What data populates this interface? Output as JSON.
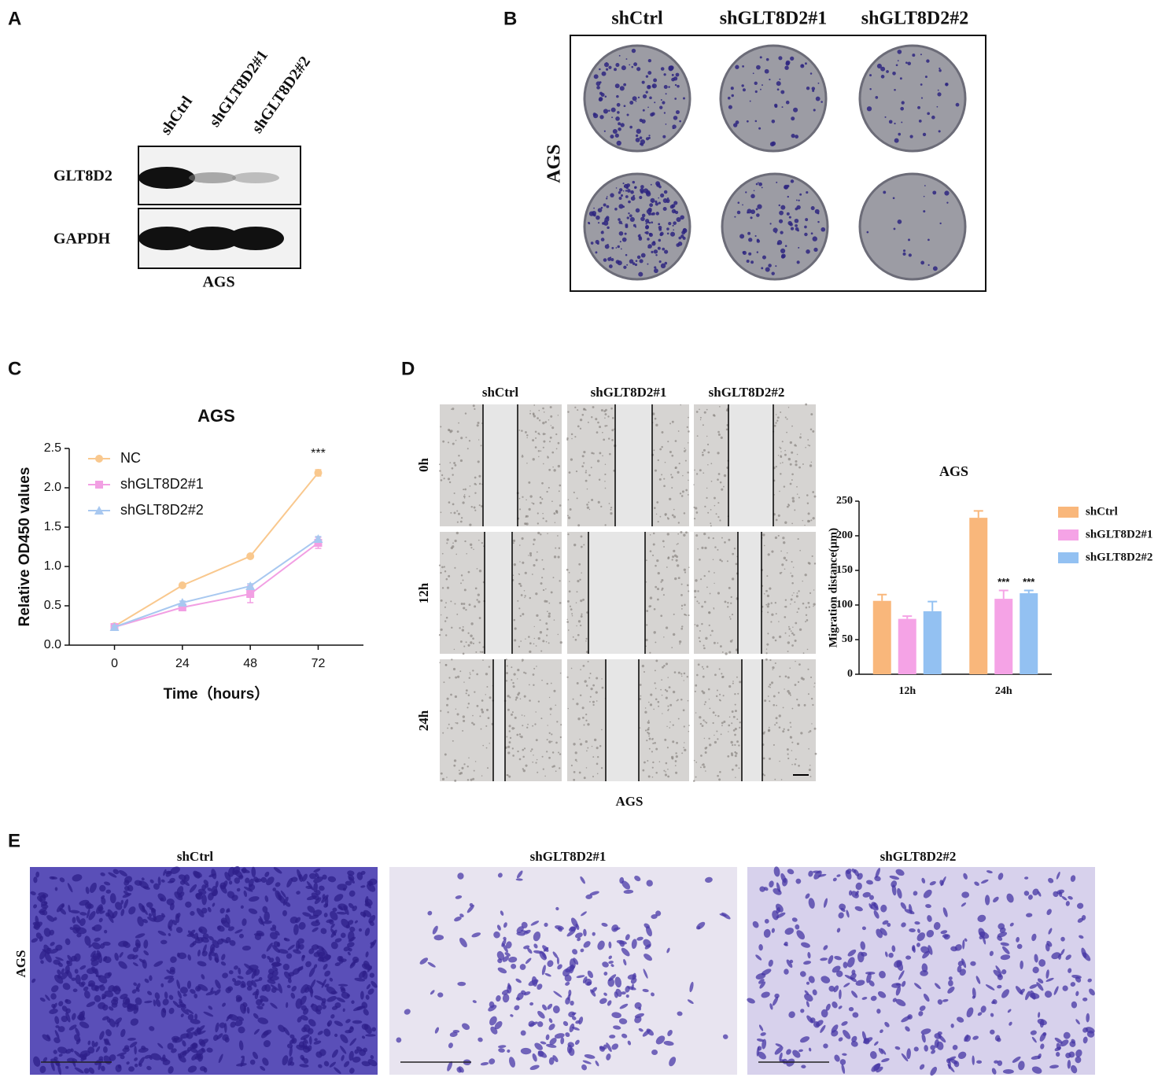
{
  "panel_labels": [
    "A",
    "B",
    "C",
    "D",
    "E"
  ],
  "western_blot": {
    "lanes": [
      "shCtrl",
      "shGLT8D2#1",
      "shGLT8D2#2"
    ],
    "proteins": [
      "GLT8D2",
      "GAPDH"
    ],
    "cell_line": "AGS"
  },
  "colony_formation": {
    "groups": [
      "shCtrl",
      "shGLT8D2#1",
      "shGLT8D2#2"
    ],
    "cell_line": "AGS"
  },
  "wound_healing": {
    "groups": [
      "shCtrl",
      "shGLT8D2#1",
      "shGLT8D2#2"
    ],
    "times": [
      "0h",
      "12h",
      "24h"
    ],
    "cell_line": "AGS"
  },
  "transwell": {
    "groups": [
      "shCtrl",
      "shGLT8D2#1",
      "shGLT8D2#2"
    ],
    "cell_line": "AGS"
  },
  "chart_data": [
    {
      "type": "line",
      "title": "AGS",
      "x_label": "Time（hours）",
      "y_label": "Relative OD450 values",
      "x": [
        0,
        24,
        48,
        72
      ],
      "xlim": [
        -16,
        88
      ],
      "xticks": [
        0,
        24,
        48,
        72
      ],
      "ylim": [
        0,
        2.5
      ],
      "yticks": [
        {
          "value": 0,
          "label": "0.0"
        },
        0.5,
        {
          "value": 1,
          "label": "1.0"
        },
        1.5,
        {
          "value": 2,
          "label": "2.0"
        },
        2.5
      ],
      "legend": "upper left",
      "series": [
        {
          "name": "NC",
          "color": "#f9c88e",
          "marker": "circle",
          "values": [
            0.24,
            0.76,
            1.13,
            2.19
          ],
          "errors": [
            0.02,
            0.02,
            0.02,
            0.04
          ],
          "significance": [
            null,
            null,
            null,
            "***"
          ]
        },
        {
          "name": "shGLT8D2#1",
          "color": "#f29fe3",
          "marker": "square",
          "values": [
            0.23,
            0.48,
            0.65,
            1.3
          ],
          "errors": [
            0.02,
            0.03,
            0.11,
            0.07
          ],
          "significance": [
            null,
            null,
            null,
            null
          ]
        },
        {
          "name": "shGLT8D2#2",
          "color": "#a8c8f0",
          "marker": "triangle",
          "values": [
            0.23,
            0.54,
            0.75,
            1.35
          ],
          "errors": [
            0.02,
            0.02,
            0.03,
            0.03
          ],
          "significance": [
            null,
            null,
            null,
            null
          ]
        }
      ]
    },
    {
      "type": "bar",
      "title": "AGS",
      "y_label": "Migration distance(μm)",
      "categories": [
        "12h",
        "24h"
      ],
      "ylim": [
        0,
        250
      ],
      "yticks": [
        0,
        50,
        100,
        150,
        200,
        250
      ],
      "legend": "right",
      "series": [
        {
          "name": "shCtrl",
          "color": "#f9b77b",
          "values": [
            106,
            226
          ],
          "errors": [
            9,
            10
          ],
          "significance": [
            null,
            null
          ]
        },
        {
          "name": "shGLT8D2#1",
          "color": "#f5a3e6",
          "values": [
            80,
            109
          ],
          "errors": [
            4,
            12
          ],
          "significance": [
            null,
            "***"
          ]
        },
        {
          "name": "shGLT8D2#2",
          "color": "#93c1f2",
          "values": [
            91,
            117
          ],
          "errors": [
            14,
            4
          ],
          "significance": [
            null,
            "***"
          ]
        }
      ]
    }
  ]
}
